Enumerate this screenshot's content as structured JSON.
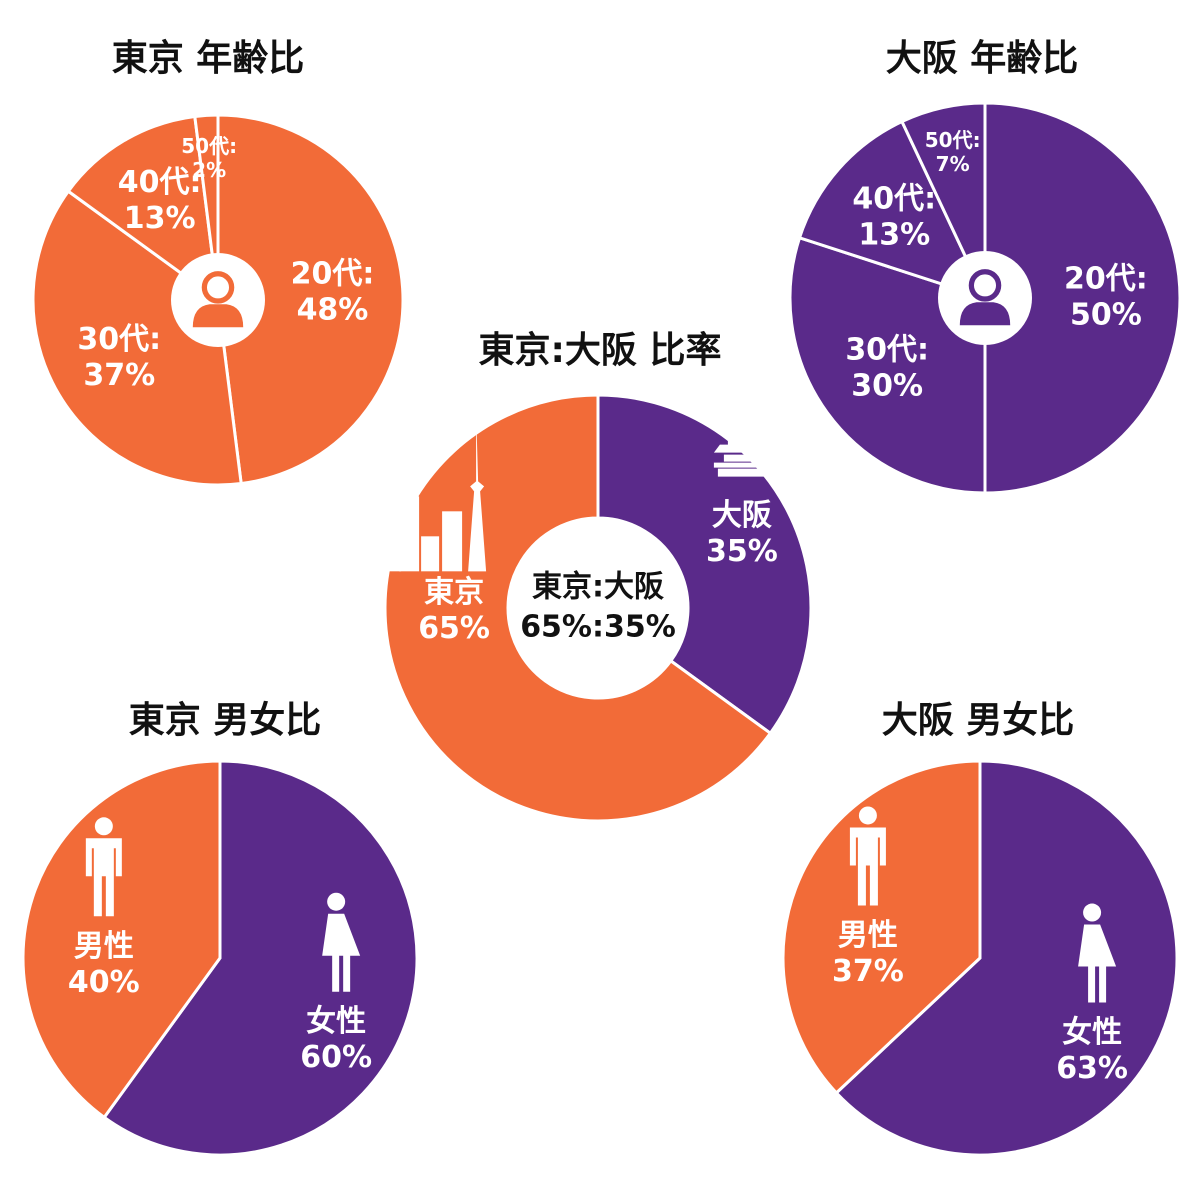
{
  "chart_data": [
    {
      "type": "pie",
      "title": "東京 年齢比",
      "categories": [
        "20代:",
        "30代:",
        "40代:",
        "50代:"
      ],
      "values": [
        48,
        37,
        13,
        2
      ],
      "value_labels": [
        "48%",
        "37%",
        "13%",
        "2%"
      ],
      "color": "#f26b38"
    },
    {
      "type": "pie",
      "title": "大阪 年齢比",
      "categories": [
        "20代:",
        "30代:",
        "40代:",
        "50代:"
      ],
      "values": [
        50,
        30,
        13,
        7
      ],
      "value_labels": [
        "50%",
        "30%",
        "13%",
        "7%"
      ],
      "color": "#5a2a8a"
    },
    {
      "type": "donut",
      "title": "東京:大阪 比率",
      "categories": [
        "大阪",
        "東京"
      ],
      "values": [
        35,
        65
      ],
      "value_labels": [
        "35%",
        "65%"
      ],
      "colors": [
        "#5a2a8a",
        "#f26b38"
      ],
      "center_label": [
        "東京:大阪",
        "65%:35%"
      ]
    },
    {
      "type": "pie",
      "title": "東京 男女比",
      "categories": [
        "女性",
        "男性"
      ],
      "values": [
        60,
        40
      ],
      "value_labels": [
        "60%",
        "40%"
      ],
      "colors": [
        "#5a2a8a",
        "#f26b38"
      ]
    },
    {
      "type": "pie",
      "title": "大阪 男女比",
      "categories": [
        "女性",
        "男性"
      ],
      "values": [
        63,
        37
      ],
      "value_labels": [
        "63%",
        "37%"
      ],
      "colors": [
        "#5a2a8a",
        "#f26b38"
      ]
    }
  ]
}
